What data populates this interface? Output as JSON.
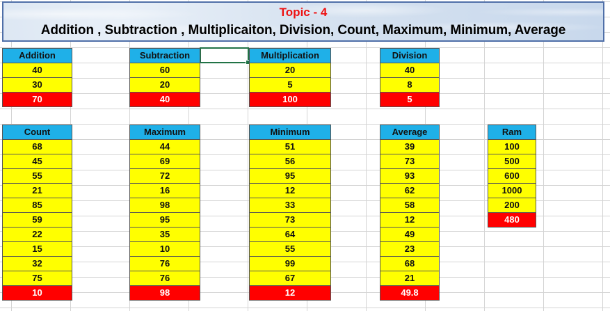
{
  "banner": {
    "topic": "Topic - 4",
    "subtitle": "Addition , Subtraction , Multiplicaiton, Division, Count, Maximum, Minimum, Average"
  },
  "colors": {
    "header": "#1fb0e8",
    "values": "#ffff00",
    "result": "#ff0000",
    "title": "#ee1111",
    "selection": "#217346"
  },
  "tables": {
    "addition": {
      "header": "Addition",
      "values": [
        "40",
        "30"
      ],
      "result": "70"
    },
    "subtraction": {
      "header": "Subtraction",
      "values": [
        "60",
        "20"
      ],
      "result": "40"
    },
    "multiplication": {
      "header": "Multiplication",
      "values": [
        "20",
        "5"
      ],
      "result": "100"
    },
    "division": {
      "header": "Division",
      "values": [
        "40",
        "8"
      ],
      "result": "5"
    },
    "count": {
      "header": "Count",
      "values": [
        "68",
        "45",
        "55",
        "21",
        "85",
        "59",
        "22",
        "15",
        "32",
        "75"
      ],
      "result": "10"
    },
    "maximum": {
      "header": "Maximum",
      "values": [
        "44",
        "69",
        "72",
        "16",
        "98",
        "95",
        "35",
        "10",
        "76",
        "76"
      ],
      "result": "98"
    },
    "minimum": {
      "header": "Minimum",
      "values": [
        "51",
        "56",
        "95",
        "12",
        "33",
        "73",
        "64",
        "55",
        "99",
        "67"
      ],
      "result": "12"
    },
    "average": {
      "header": "Average",
      "values": [
        "39",
        "73",
        "93",
        "62",
        "58",
        "12",
        "49",
        "23",
        "68",
        "21"
      ],
      "result": "49.8"
    },
    "ram": {
      "header": "Ram",
      "values": [
        "100",
        "500",
        "600",
        "1000",
        "200"
      ],
      "result": "480"
    }
  }
}
